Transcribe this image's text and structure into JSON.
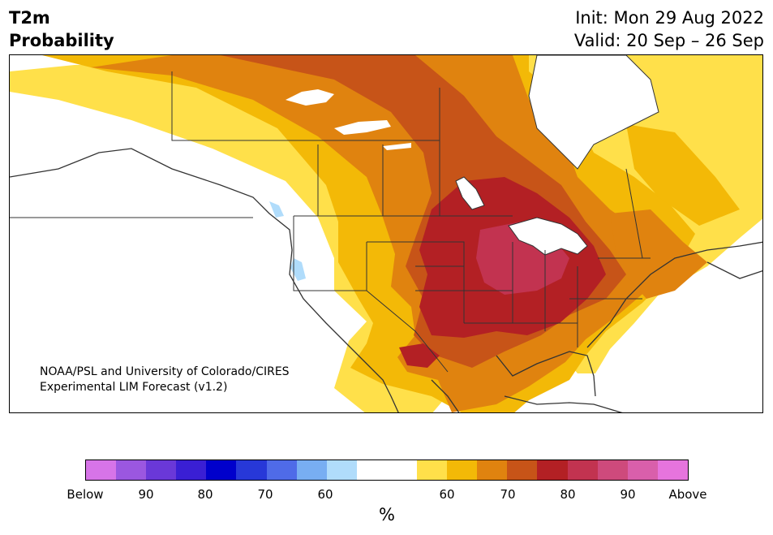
{
  "title": {
    "line1": "T2m",
    "line2": "Probability"
  },
  "dates": {
    "init": "Init: Mon 29 Aug 2022",
    "valid": "Valid: 20 Sep – 26 Sep"
  },
  "credit": {
    "line1": "NOAA/PSL and University of Colorado/CIRES",
    "line2": "Experimental LIM Forecast (v1.2)"
  },
  "colorbar": {
    "unit": "%",
    "tick_labels": [
      "Below",
      "90",
      "80",
      "70",
      "60",
      "60",
      "70",
      "80",
      "90",
      "Above"
    ],
    "colors": [
      "#d774e8",
      "#9b57e0",
      "#6a38d8",
      "#3a1fd4",
      "#0000cc",
      "#2738d8",
      "#4f6be8",
      "#78aef2",
      "#b0dcfb",
      "#ffffff",
      "#ffffff",
      "#ffe04a",
      "#f3b907",
      "#e0830f",
      "#c75418",
      "#b32024",
      "#c23350",
      "#ce4a7c",
      "#d95fab",
      "#e674dd"
    ]
  },
  "legend_colors": {
    "yellow": "#ffe04a",
    "gold": "#f3b907",
    "orange": "#e0830f",
    "dark_orange": "#c75418",
    "red": "#b32024",
    "crimson": "#c23350",
    "light_blue": "#b0dcfb",
    "border": "#333333"
  }
}
